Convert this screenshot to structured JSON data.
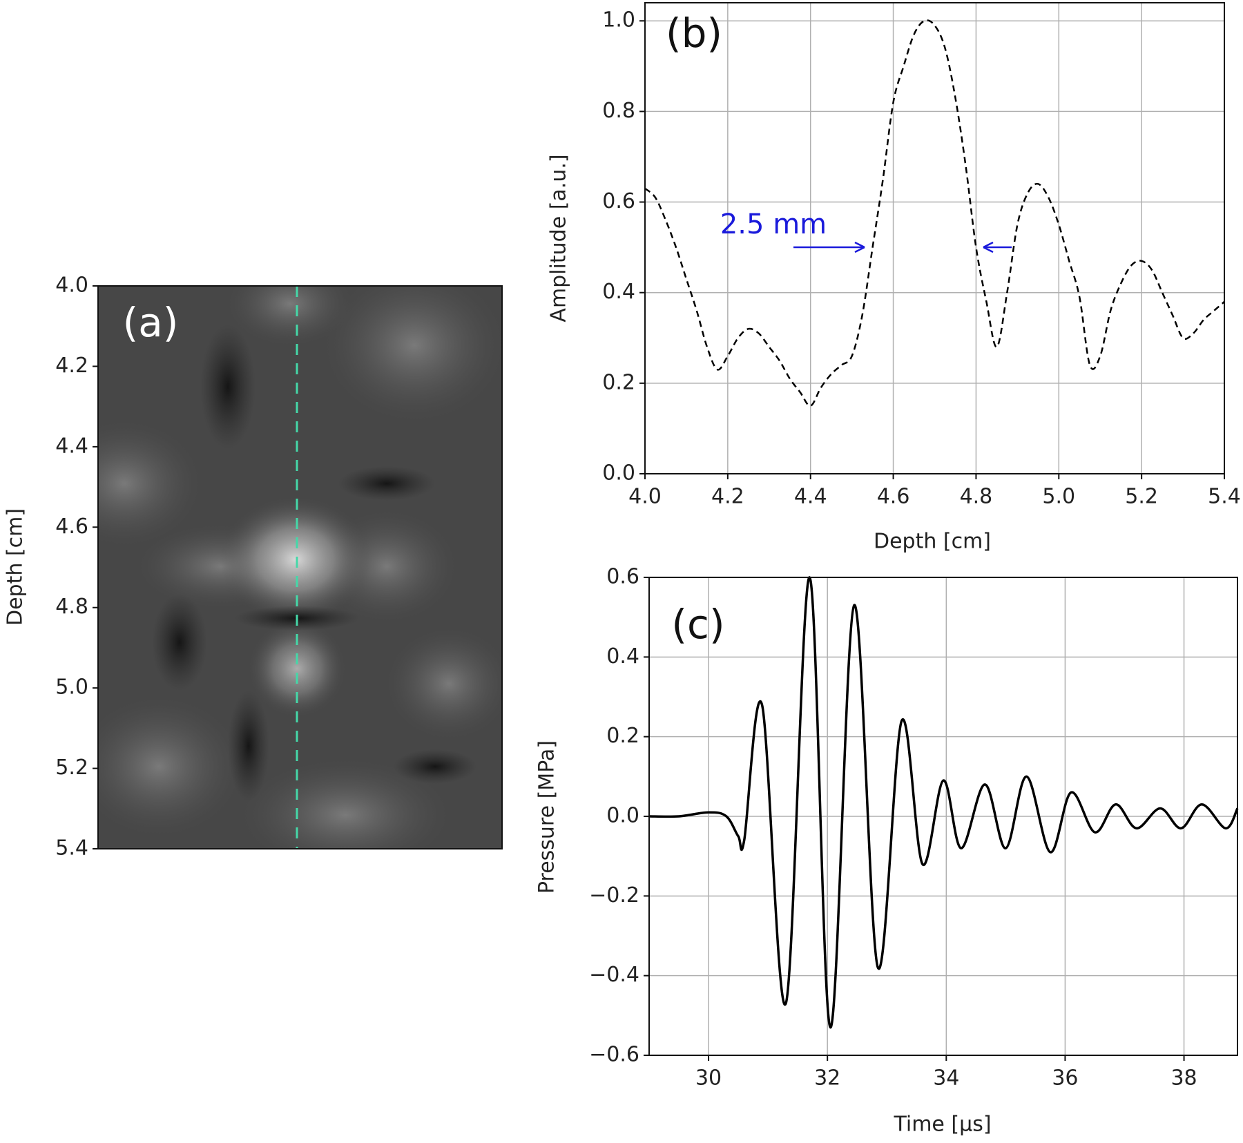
{
  "chart_data": [
    {
      "type": "image",
      "label": "(a)",
      "y_label": "Depth [cm]",
      "ylim": [
        4.0,
        5.4
      ],
      "y_inverted": true,
      "yticks": [
        {
          "value": 4.0,
          "label": "4.0"
        },
        4.2,
        4.4,
        4.6,
        4.8,
        {
          "value": 5.0,
          "label": "5.0"
        },
        5.2,
        5.4
      ]
    },
    {
      "type": "line",
      "label": "(b)",
      "x_label": "Depth [cm]",
      "y_label": "Amplitude [a.u.]",
      "annotation": "2.5 mm",
      "annotation_color": "#1a1adb",
      "color": "#000000",
      "dashed": true,
      "grid": true,
      "x": [
        4.0,
        4.025,
        4.05,
        4.075,
        4.1,
        4.125,
        4.15,
        4.175,
        4.2,
        4.225,
        4.25,
        4.275,
        4.3,
        4.325,
        4.35,
        4.375,
        4.4,
        4.425,
        4.45,
        4.475,
        4.5,
        4.525,
        4.55,
        4.575,
        4.6,
        4.625,
        4.65,
        4.675,
        4.7,
        4.725,
        4.75,
        4.775,
        4.8,
        4.825,
        4.85,
        4.875,
        4.9,
        4.925,
        4.95,
        4.975,
        5.0,
        5.025,
        5.05,
        5.075,
        5.1,
        5.125,
        5.15,
        5.175,
        5.2,
        5.225,
        5.25,
        5.275,
        5.3,
        5.325,
        5.35,
        5.375,
        5.4
      ],
      "values": [
        0.63,
        0.61,
        0.56,
        0.5,
        0.43,
        0.36,
        0.28,
        0.23,
        0.26,
        0.3,
        0.32,
        0.31,
        0.28,
        0.25,
        0.21,
        0.18,
        0.15,
        0.19,
        0.22,
        0.24,
        0.26,
        0.35,
        0.5,
        0.65,
        0.82,
        0.9,
        0.97,
        1.0,
        0.99,
        0.94,
        0.83,
        0.68,
        0.5,
        0.38,
        0.28,
        0.4,
        0.55,
        0.62,
        0.64,
        0.61,
        0.55,
        0.47,
        0.39,
        0.24,
        0.26,
        0.36,
        0.42,
        0.46,
        0.47,
        0.45,
        0.4,
        0.35,
        0.3,
        0.31,
        0.34,
        0.36,
        0.38
      ],
      "xlim": [
        4.0,
        5.4
      ],
      "ylim": [
        0,
        1.04
      ],
      "xticks": [
        {
          "value": 4.0,
          "label": "4.0"
        },
        4.2,
        4.4,
        4.6,
        4.8,
        {
          "value": 5.0,
          "label": "5.0"
        },
        5.2,
        5.4
      ],
      "yticks": [
        {
          "value": 0,
          "label": "0.0"
        },
        0.2,
        0.4,
        0.6,
        0.8,
        {
          "value": 1,
          "label": "1.0"
        }
      ]
    },
    {
      "type": "line",
      "label": "(c)",
      "x_label": "Time [µs]",
      "y_label": "Pressure [MPa]",
      "color": "#000000",
      "dashed": false,
      "grid": true,
      "x": [
        29,
        29.5,
        30,
        30.3,
        30.5,
        30.6,
        30.9,
        31.3,
        31.7,
        32.05,
        32.45,
        32.85,
        33.25,
        33.6,
        33.95,
        34.25,
        34.65,
        35.0,
        35.35,
        35.75,
        36.1,
        36.5,
        36.85,
        37.2,
        37.6,
        37.95,
        38.3,
        38.7,
        38.9
      ],
      "values": [
        0,
        0,
        0.01,
        0,
        -0.05,
        -0.06,
        0.28,
        -0.47,
        0.6,
        -0.53,
        0.53,
        -0.38,
        0.24,
        -0.12,
        0.09,
        -0.08,
        0.08,
        -0.08,
        0.1,
        -0.09,
        0.06,
        -0.04,
        0.03,
        -0.03,
        0.02,
        -0.03,
        0.03,
        -0.03,
        0.02
      ],
      "xlim": [
        29,
        38.9
      ],
      "ylim": [
        -0.6,
        0.6
      ],
      "xticks": [
        30,
        32,
        34,
        36,
        38
      ],
      "yticks": [
        {
          "value": -0.6,
          "label": "−0.6"
        },
        {
          "value": -0.4,
          "label": "−0.4"
        },
        {
          "value": -0.2,
          "label": "−0.2"
        },
        {
          "value": 0,
          "label": "0.0"
        },
        0.2,
        0.4,
        0.6
      ]
    }
  ]
}
